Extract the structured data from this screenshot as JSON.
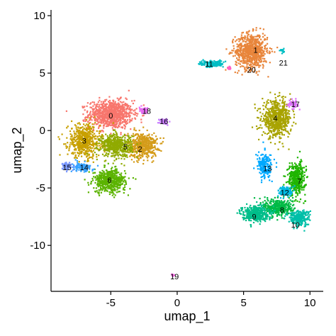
{
  "chart_data": {
    "type": "scatter",
    "title": "",
    "xlabel": "umap_1",
    "ylabel": "umap_2",
    "xlim": [
      -9.5,
      11
    ],
    "ylim": [
      -14,
      10.5
    ],
    "xticks": [
      -5,
      0,
      5,
      10
    ],
    "xtick_labels": [
      "-5",
      "0",
      "5",
      "10"
    ],
    "yticks": [
      10,
      5,
      0,
      -5,
      -10
    ],
    "ytick_labels": [
      "10",
      "5",
      "0",
      "-5",
      "-10"
    ],
    "grid": false,
    "legend": "none",
    "clusters": [
      {
        "label": "0",
        "color": "#F8766D",
        "x": -5.0,
        "y": 1.4,
        "sx": 1.5,
        "sy": 1.1,
        "n": 900
      },
      {
        "label": "1",
        "color": "#E8853B",
        "x": 5.6,
        "y": 6.9,
        "sx": 1.1,
        "sy": 1.4,
        "n": 750
      },
      {
        "label": "2",
        "color": "#D49C1A",
        "x": -2.6,
        "y": -1.3,
        "sx": 1.0,
        "sy": 1.0,
        "n": 500
      },
      {
        "label": "3",
        "color": "#C8A000",
        "x": -7.0,
        "y": -0.9,
        "sx": 1.1,
        "sy": 1.3,
        "n": 550
      },
      {
        "label": "4",
        "color": "#A8A300",
        "x": 7.5,
        "y": 1.0,
        "sx": 1.0,
        "sy": 1.4,
        "n": 600
      },
      {
        "label": "5",
        "color": "#90AA00",
        "x": -4.6,
        "y": -1.3,
        "sx": 1.1,
        "sy": 0.9,
        "n": 500
      },
      {
        "label": "6",
        "color": "#5BB300",
        "x": -5.1,
        "y": -4.4,
        "sx": 1.1,
        "sy": 0.9,
        "n": 500
      },
      {
        "label": "7",
        "color": "#1FB500",
        "x": 9.0,
        "y": -4.2,
        "sx": 0.6,
        "sy": 1.3,
        "n": 380
      },
      {
        "label": "8",
        "color": "#00BA45",
        "x": 7.6,
        "y": -6.7,
        "sx": 1.0,
        "sy": 0.7,
        "n": 380
      },
      {
        "label": "9",
        "color": "#00BE8A",
        "x": 5.9,
        "y": -7.2,
        "sx": 0.9,
        "sy": 0.6,
        "n": 380
      },
      {
        "label": "10",
        "color": "#00BFA8",
        "x": 9.2,
        "y": -7.6,
        "sx": 0.7,
        "sy": 0.6,
        "n": 280
      },
      {
        "label": "11",
        "color": "#00BDC4",
        "x": 2.6,
        "y": 5.8,
        "sx": 0.8,
        "sy": 0.25,
        "n": 160
      },
      {
        "label": "12",
        "color": "#00B8E0",
        "x": 8.2,
        "y": -5.3,
        "sx": 0.5,
        "sy": 0.4,
        "n": 140
      },
      {
        "label": "13",
        "color": "#00A9FF",
        "x": 6.6,
        "y": -3.1,
        "sx": 0.5,
        "sy": 1.0,
        "n": 200
      },
      {
        "label": "14",
        "color": "#35A2FF",
        "x": -7.2,
        "y": -3.2,
        "sx": 0.7,
        "sy": 0.35,
        "n": 120
      },
      {
        "label": "15",
        "color": "#7997FF",
        "x": -8.3,
        "y": -3.1,
        "sx": 0.3,
        "sy": 0.3,
        "n": 70
      },
      {
        "label": "16",
        "color": "#C77CFF",
        "x": -1.0,
        "y": 0.8,
        "sx": 0.3,
        "sy": 0.25,
        "n": 60
      },
      {
        "label": "17",
        "color": "#DC71FA",
        "x": 8.7,
        "y": 2.3,
        "sx": 0.35,
        "sy": 0.3,
        "n": 60
      },
      {
        "label": "18",
        "color": "#E76BF3",
        "x": -2.5,
        "y": 1.7,
        "sx": 0.3,
        "sy": 0.25,
        "n": 50
      },
      {
        "label": "19",
        "color": "#F564E3",
        "x": -0.3,
        "y": -12.6,
        "sx": 0.12,
        "sy": 0.08,
        "n": 12
      },
      {
        "label": "20",
        "color": "#FF61C3",
        "x": 3.9,
        "y": 5.4,
        "sx": 0.15,
        "sy": 0.15,
        "n": 15
      },
      {
        "label": "21",
        "color": "#00BFC4",
        "x": 7.9,
        "y": 6.9,
        "sx": 0.15,
        "sy": 0.15,
        "n": 15
      }
    ],
    "label_positions": [
      {
        "label": "0",
        "x": -5.0,
        "y": 1.3
      },
      {
        "label": "1",
        "x": 5.9,
        "y": 7.0
      },
      {
        "label": "2",
        "x": -2.8,
        "y": -1.6
      },
      {
        "label": "3",
        "x": -7.0,
        "y": -0.9
      },
      {
        "label": "4",
        "x": 7.4,
        "y": 1.1
      },
      {
        "label": "5",
        "x": -3.9,
        "y": -1.4
      },
      {
        "label": "6",
        "x": -5.1,
        "y": -4.3
      },
      {
        "label": "7",
        "x": 9.2,
        "y": -4.4
      },
      {
        "label": "8",
        "x": 7.9,
        "y": -6.9
      },
      {
        "label": "9",
        "x": 5.8,
        "y": -7.5
      },
      {
        "label": "10",
        "x": 8.9,
        "y": -8.2
      },
      {
        "label": "11",
        "x": 2.4,
        "y": 5.8
      },
      {
        "label": "12",
        "x": 8.1,
        "y": -5.4
      },
      {
        "label": "13",
        "x": 6.8,
        "y": -3.3
      },
      {
        "label": "14",
        "x": -7.0,
        "y": -3.2
      },
      {
        "label": "15",
        "x": -8.3,
        "y": -3.2
      },
      {
        "label": "16",
        "x": -1.0,
        "y": 0.8
      },
      {
        "label": "17",
        "x": 8.9,
        "y": 2.3
      },
      {
        "label": "18",
        "x": -2.3,
        "y": 1.7
      },
      {
        "label": "19",
        "x": -0.2,
        "y": -12.7
      },
      {
        "label": "20",
        "x": 5.6,
        "y": 5.3
      },
      {
        "label": "21",
        "x": 8.0,
        "y": 5.9
      }
    ]
  }
}
